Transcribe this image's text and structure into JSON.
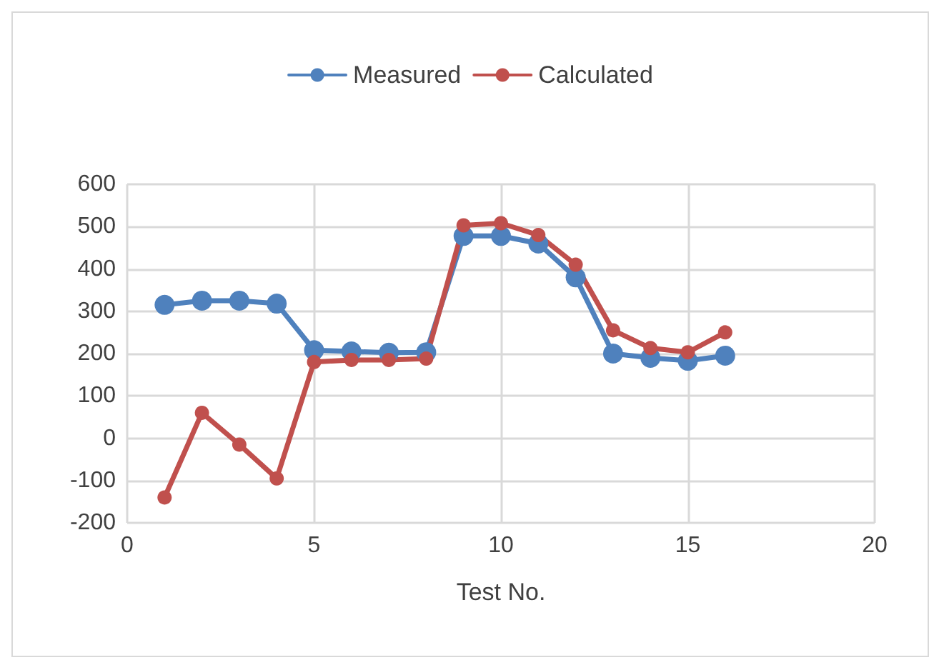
{
  "chart_data": {
    "type": "line",
    "xlabel": "Test No.",
    "x": [
      1,
      2,
      3,
      4,
      5,
      6,
      7,
      8,
      9,
      10,
      11,
      12,
      13,
      14,
      15,
      16
    ],
    "series": [
      {
        "name": "Measured",
        "color": "#4f81bd",
        "values": [
          315,
          325,
          325,
          318,
          208,
          205,
          202,
          203,
          478,
          478,
          460,
          380,
          200,
          190,
          183,
          195
        ]
      },
      {
        "name": "Calculated",
        "color": "#c0504d",
        "values": [
          -140,
          60,
          -15,
          -95,
          180,
          185,
          185,
          188,
          503,
          508,
          480,
          410,
          255,
          213,
          203,
          250
        ]
      }
    ],
    "xlim": [
      0,
      20
    ],
    "xticks": [
      0,
      5,
      10,
      15,
      20
    ],
    "ylim": [
      -200,
      600
    ],
    "yticks": [
      -200,
      -100,
      0,
      100,
      200,
      300,
      400,
      500,
      600
    ],
    "grid": true,
    "legend": "top",
    "marker": "circle",
    "line_style": "solid"
  }
}
